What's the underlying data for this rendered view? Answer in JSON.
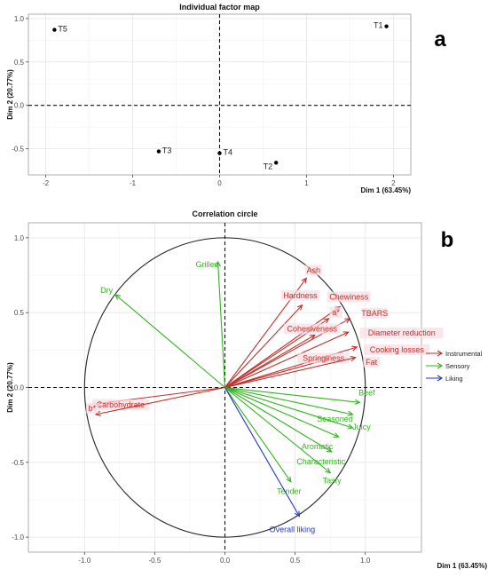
{
  "chart_data": [
    {
      "type": "scatter",
      "panel_letter": "a",
      "title": "Individual factor map",
      "xlabel": "Dim 1 (63.45%)",
      "ylabel": "Dim 2 (20.77%)",
      "xlim": [
        -2.2,
        2.2
      ],
      "ylim": [
        -0.8,
        1.05
      ],
      "x_ticks": [
        -2,
        -1,
        0,
        1,
        2
      ],
      "x_tick_labels": [
        "-2",
        "-1",
        "0",
        "1",
        "2"
      ],
      "y_ticks": [
        1.0,
        0.5,
        0.0,
        -0.5
      ],
      "y_tick_labels": [
        "1.0",
        "0.5",
        "0.0",
        "-0.5"
      ],
      "grid": true,
      "points": [
        {
          "label": "T5",
          "x": -1.9,
          "y": 0.87
        },
        {
          "label": "T1",
          "x": 1.92,
          "y": 0.91
        },
        {
          "label": "T3",
          "x": -0.7,
          "y": -0.53
        },
        {
          "label": "T4",
          "x": 0.0,
          "y": -0.55
        },
        {
          "label": "T2",
          "x": 0.65,
          "y": -0.66
        }
      ]
    },
    {
      "type": "correlation-circle",
      "panel_letter": "b",
      "title": "Correlation circle",
      "xlabel": "Dim 1 (63.45%)",
      "ylabel": "Dim 2 (20.77%)",
      "xlim": [
        -1.4,
        1.4
      ],
      "ylim": [
        -1.1,
        1.1
      ],
      "x_ticks": [
        -1.0,
        -0.5,
        0.0,
        0.5,
        1.0
      ],
      "x_tick_labels": [
        "-1.0",
        "-0.5",
        "0.0",
        "0.5",
        "1.0"
      ],
      "y_ticks": [
        1.0,
        0.5,
        0.0,
        -0.5,
        -1.0
      ],
      "y_tick_labels": [
        "1.0",
        "0.5",
        "0.0",
        "-0.5",
        "-1.0"
      ],
      "grid": true,
      "legend_position": "right",
      "legend": [
        {
          "name": "Instrumental",
          "color": "#c0302b"
        },
        {
          "name": "Sensory",
          "color": "#33b51f"
        },
        {
          "name": "Liking",
          "color": "#2233cc"
        }
      ],
      "vectors": [
        {
          "label": "Ash",
          "group": "Instrumental",
          "x": 0.58,
          "y": 0.73
        },
        {
          "label": "Hardness",
          "group": "Instrumental",
          "x": 0.55,
          "y": 0.55
        },
        {
          "label": "Chewiness",
          "group": "Instrumental",
          "x": 0.82,
          "y": 0.54
        },
        {
          "label": "a*",
          "group": "Instrumental",
          "x": 0.74,
          "y": 0.46
        },
        {
          "label": "TBARS",
          "group": "Instrumental",
          "x": 0.89,
          "y": 0.46
        },
        {
          "label": "Cohesiveness",
          "group": "Instrumental",
          "x": 0.64,
          "y": 0.35
        },
        {
          "label": "Diameter reduction",
          "group": "Instrumental",
          "x": 0.88,
          "y": 0.37
        },
        {
          "label": "Cooking losses",
          "group": "Instrumental",
          "x": 0.94,
          "y": 0.27
        },
        {
          "label": "Springiness",
          "group": "Instrumental",
          "x": 0.74,
          "y": 0.19
        },
        {
          "label": "Fat",
          "group": "Instrumental",
          "x": 0.93,
          "y": 0.2
        },
        {
          "label": "Carbohydrate",
          "group": "Instrumental",
          "x": -0.92,
          "y": -0.11
        },
        {
          "label": "b*",
          "group": "Instrumental",
          "x": -0.92,
          "y": -0.18
        },
        {
          "label": "Grilled",
          "group": "Sensory",
          "x": -0.05,
          "y": 0.84
        },
        {
          "label": "Dry",
          "group": "Sensory",
          "x": -0.78,
          "y": 0.62
        },
        {
          "label": "Beef",
          "group": "Sensory",
          "x": 0.96,
          "y": -0.1
        },
        {
          "label": "Seasoned",
          "group": "Sensory",
          "x": 0.91,
          "y": -0.18
        },
        {
          "label": "Juicy",
          "group": "Sensory",
          "x": 0.91,
          "y": -0.27
        },
        {
          "label": "Aromatic",
          "group": "Sensory",
          "x": 0.81,
          "y": -0.33
        },
        {
          "label": "Characteristic",
          "group": "Sensory",
          "x": 0.76,
          "y": -0.43
        },
        {
          "label": "Tender",
          "group": "Sensory",
          "x": 0.47,
          "y": -0.63
        },
        {
          "label": "Tasty",
          "group": "Sensory",
          "x": 0.75,
          "y": -0.57
        },
        {
          "label": "Overall liking",
          "group": "Liking",
          "x": 0.53,
          "y": -0.86
        }
      ]
    }
  ]
}
